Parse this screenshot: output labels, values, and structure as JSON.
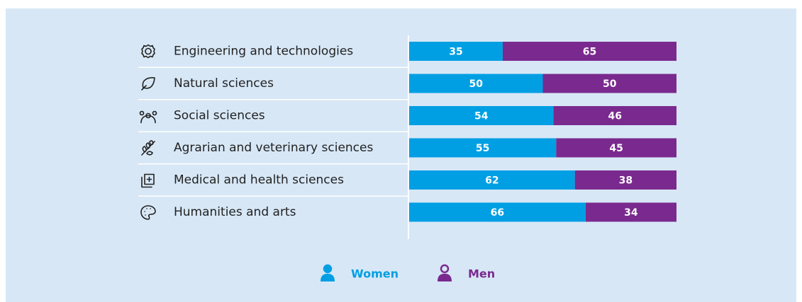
{
  "chart_data": {
    "type": "stacked-bar-horizontal",
    "categories": [
      "Engineering and technologies",
      "Natural sciences",
      "Social sciences",
      "Agrarian and veterinary sciences",
      "Medical and health sciences",
      "Humanities and arts"
    ],
    "series": [
      {
        "name": "Women",
        "color": "#009fe3",
        "values": [
          35,
          50,
          54,
          55,
          62,
          66
        ]
      },
      {
        "name": "Men",
        "color": "#7a2a8e",
        "values": [
          65,
          50,
          46,
          45,
          38,
          34
        ]
      }
    ],
    "xlim": [
      0,
      100
    ],
    "legend": "bottom"
  }
}
